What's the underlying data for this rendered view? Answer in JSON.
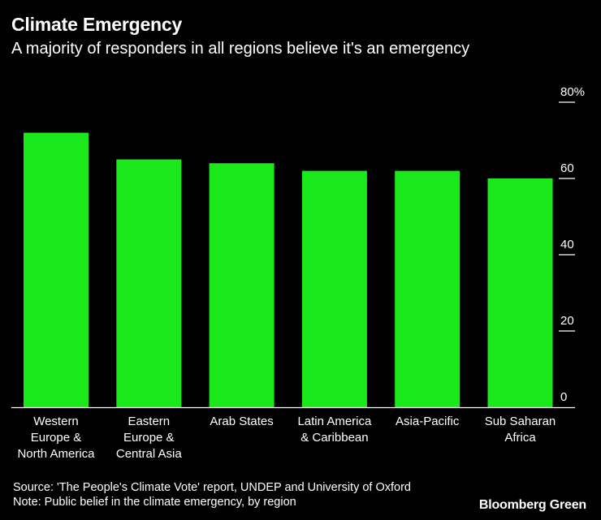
{
  "title": "Climate Emergency",
  "subtitle": "A majority of responders in all regions believe it's an emergency",
  "source": "Source: 'The People's Climate Vote' report, UNDEP and University of Oxford",
  "note": "Note: Public belief in the climate emergency, by region",
  "brand": "Bloomberg Green",
  "colors": {
    "bar": "#1AE81A",
    "background": "#000000",
    "text": "#FFFFFF"
  },
  "chart_data": {
    "type": "bar",
    "title": "Climate Emergency",
    "subtitle": "A majority of responders in all regions believe it's an emergency",
    "categories": [
      [
        "Western",
        "Europe &",
        "North America"
      ],
      [
        "Eastern",
        "Europe &",
        "Central Asia"
      ],
      [
        "Arab States"
      ],
      [
        "Latin America",
        "& Caribbean"
      ],
      [
        "Asia-Pacific"
      ],
      [
        "Sub Saharan",
        "Africa"
      ]
    ],
    "values": [
      72,
      65,
      64,
      62,
      62,
      60
    ],
    "ylim": [
      0,
      80
    ],
    "yticks": [
      0,
      20,
      40,
      60,
      80
    ],
    "ytick_labels": [
      "0",
      "20",
      "40",
      "60",
      "80%"
    ],
    "yaxis_position": "right",
    "xlabel": "",
    "ylabel": ""
  }
}
